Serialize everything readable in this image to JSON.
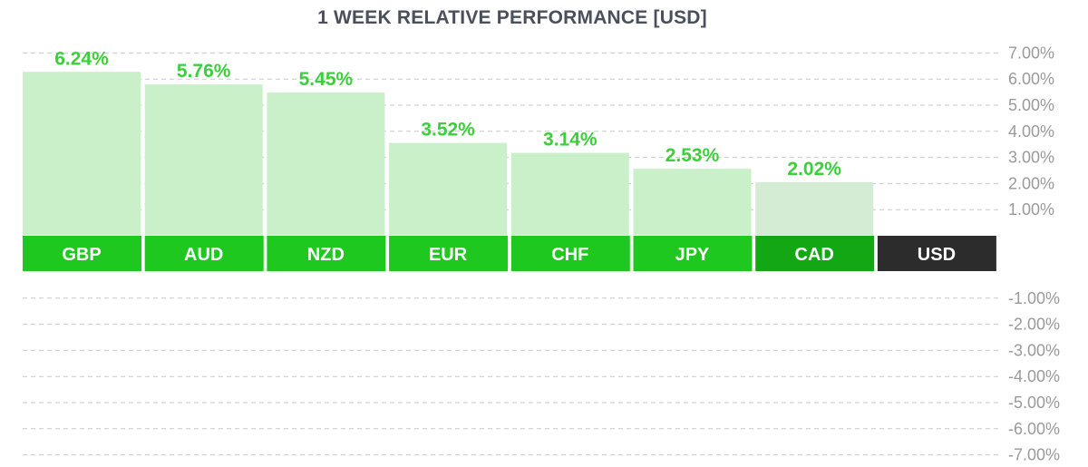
{
  "chart_data": {
    "type": "bar",
    "title": "1 WEEK RELATIVE PERFORMANCE  [USD]",
    "categories": [
      "GBP",
      "AUD",
      "NZD",
      "EUR",
      "CHF",
      "JPY",
      "CAD",
      "USD"
    ],
    "values": [
      6.24,
      5.76,
      5.45,
      3.52,
      3.14,
      2.53,
      2.02,
      0
    ],
    "value_labels": [
      "6.24%",
      "5.76%",
      "5.45%",
      "3.52%",
      "3.14%",
      "2.53%",
      "2.02%",
      ""
    ],
    "ylim": [
      -7,
      7
    ],
    "y_ticks_positive": [
      "7.00%",
      "6.00%",
      "5.00%",
      "4.00%",
      "3.00%",
      "2.00%",
      "1.00%"
    ],
    "y_ticks_negative": [
      "-1.00%",
      "-2.00%",
      "-3.00%",
      "-4.00%",
      "-5.00%",
      "-6.00%",
      "-7.00%"
    ],
    "grid": true,
    "xlabel": "",
    "ylabel": "",
    "colors": {
      "label_green": "#1fc81f",
      "label_dark_green": "#13a813",
      "base_currency": "#2c2c2c",
      "bar_fill": "#c9f0c9",
      "value_text": "#3ccf3c"
    },
    "label_colors": [
      "#1fc81f",
      "#1fc81f",
      "#1fc81f",
      "#1fc81f",
      "#1fc81f",
      "#1fc81f",
      "#13a813",
      "#2c2c2c"
    ]
  }
}
